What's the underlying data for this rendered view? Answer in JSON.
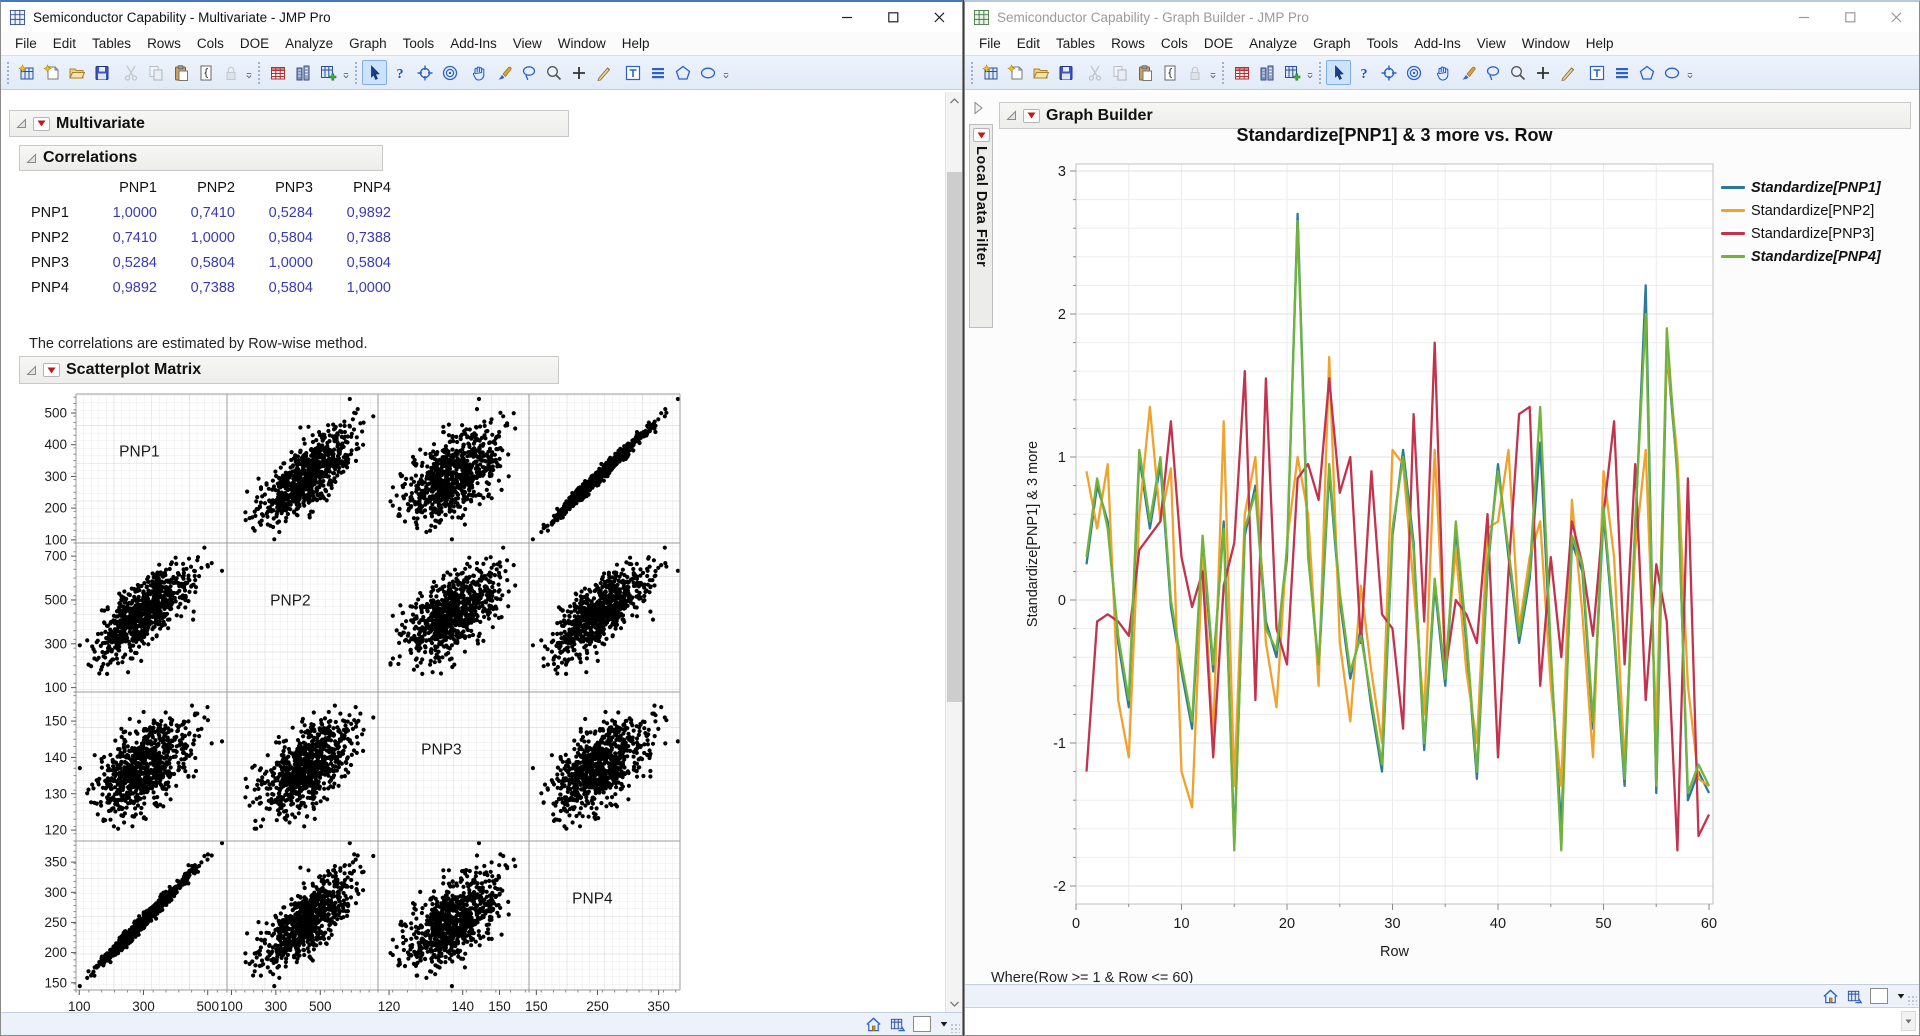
{
  "left_window": {
    "title": "Semiconductor Capability - Multivariate - JMP Pro",
    "menu": [
      "File",
      "Edit",
      "Tables",
      "Rows",
      "Cols",
      "DOE",
      "Analyze",
      "Graph",
      "Tools",
      "Add-Ins",
      "View",
      "Window",
      "Help"
    ],
    "outline_headers": {
      "multivariate": "Multivariate",
      "correlations": "Correlations",
      "scatterplot": "Scatterplot Matrix"
    },
    "correlations": {
      "columns": [
        "PNP1",
        "PNP2",
        "PNP3",
        "PNP4"
      ],
      "rows": [
        {
          "label": "PNP1",
          "values": [
            "1,0000",
            "0,7410",
            "0,5284",
            "0,9892"
          ]
        },
        {
          "label": "PNP2",
          "values": [
            "0,7410",
            "1,0000",
            "0,5804",
            "0,7388"
          ]
        },
        {
          "label": "PNP3",
          "values": [
            "0,5284",
            "0,5804",
            "1,0000",
            "0,5804"
          ]
        },
        {
          "label": "PNP4",
          "values": [
            "0,9892",
            "0,7388",
            "0,5804",
            "1,0000"
          ]
        }
      ],
      "note": "The correlations are estimated by Row-wise method.",
      "value_color": "#3a3ab0"
    }
  },
  "right_window": {
    "title": "Semiconductor Capability - Graph Builder - JMP Pro",
    "menu": [
      "File",
      "Edit",
      "Tables",
      "Rows",
      "Cols",
      "DOE",
      "Analyze",
      "Graph",
      "Tools",
      "Add-Ins",
      "View",
      "Window",
      "Help"
    ],
    "outline_headers": {
      "graph_builder": "Graph Builder"
    },
    "local_data_filter_label": "Local Data Filter",
    "where_text": "Where(Row >= 1 & Row <= 60)",
    "legend": [
      {
        "label": "Standardize[PNP1]",
        "color": "#2d7a96",
        "emphasized": true
      },
      {
        "label": "Standardize[PNP2]",
        "color": "#f0a22e",
        "emphasized": false
      },
      {
        "label": "Standardize[PNP3]",
        "color": "#c2334d",
        "emphasized": false
      },
      {
        "label": "Standardize[PNP4]",
        "color": "#70b33d",
        "emphasized": true
      }
    ]
  },
  "toolbar": {
    "groups": [
      [
        "new-data-table",
        "new-journal",
        "open",
        "save"
      ],
      [
        "cut|disabled",
        "copy|disabled",
        "paste",
        "journal",
        "lock|disabled",
        "overflow"
      ],
      [
        "data-table",
        "columns",
        "new-column",
        "overflow"
      ],
      [
        "arrow|selected",
        "help",
        "crosshair",
        "bullseye"
      ],
      [
        "hand",
        "brush",
        "lasso",
        "magnifier",
        "plus",
        "pencil"
      ],
      [
        "annotate",
        "lines",
        "polygon",
        "oval",
        "overflow"
      ]
    ],
    "status_icons": [
      "home",
      "preview-table",
      "blank-thumb",
      "caret-down"
    ]
  },
  "chart_data": [
    {
      "type": "line",
      "title": "Standardize[PNP1] & 3 more vs. Row",
      "xlabel": "Row",
      "ylabel": "Standardize[PNP1] & 3 more",
      "xlim": [
        0,
        60
      ],
      "ylim": [
        -2.15,
        3.05
      ],
      "x_ticks": [
        0,
        10,
        20,
        30,
        40,
        50,
        60
      ],
      "y_ticks": [
        3,
        2,
        1,
        0,
        -1,
        -2
      ],
      "grid": true,
      "legend_position": "right",
      "x_first": 1,
      "x_last": 60,
      "series": [
        {
          "name": "Standardize[PNP1]",
          "color": "#2d7a96",
          "emphasized": true,
          "values": [
            0.25,
            0.8,
            0.55,
            -0.3,
            -0.75,
            1.0,
            0.5,
            0.95,
            -0.05,
            -0.5,
            -0.9,
            0.4,
            -0.5,
            0.55,
            -1.7,
            0.45,
            0.8,
            -0.15,
            -0.4,
            0.3,
            2.7,
            0.35,
            -0.5,
            0.9,
            0.0,
            -0.55,
            -0.2,
            -0.75,
            -1.2,
            0.45,
            1.05,
            0.4,
            -1.05,
            0.1,
            -0.6,
            0.5,
            -0.3,
            -1.25,
            0.2,
            0.95,
            0.3,
            -0.3,
            0.15,
            1.1,
            -0.4,
            -1.6,
            0.4,
            0.2,
            -0.9,
            0.6,
            -0.25,
            -1.3,
            0.5,
            2.2,
            -1.35,
            1.75,
            0.9,
            -1.4,
            -1.2,
            -1.35
          ]
        },
        {
          "name": "Standardize[PNP2]",
          "color": "#f0a22e",
          "emphasized": false,
          "values": [
            0.9,
            0.5,
            0.95,
            -0.7,
            -1.1,
            0.6,
            1.35,
            0.55,
            0.92,
            -1.2,
            -1.45,
            0.3,
            -0.95,
            1.25,
            -1.3,
            0.6,
            1.0,
            -0.3,
            -0.75,
            0.4,
            1.0,
            0.6,
            -0.6,
            1.7,
            -0.3,
            -0.85,
            0.1,
            -0.5,
            -1.0,
            1.05,
            0.95,
            0.1,
            -0.8,
            1.05,
            -0.45,
            0.35,
            -0.5,
            -1.0,
            0.5,
            0.55,
            1.05,
            -0.2,
            0.3,
            0.55,
            -0.6,
            -1.3,
            0.7,
            -0.1,
            -1.1,
            0.9,
            0.3,
            -1.15,
            0.35,
            1.05,
            -0.9,
            1.75,
            1.0,
            -0.6,
            -1.25,
            -1.3
          ]
        },
        {
          "name": "Standardize[PNP3]",
          "color": "#c2334d",
          "emphasized": false,
          "values": [
            -1.2,
            -0.15,
            -0.1,
            -0.15,
            -0.25,
            0.35,
            0.45,
            0.55,
            1.25,
            0.3,
            -0.05,
            0.2,
            -1.1,
            0.1,
            0.4,
            1.6,
            -0.7,
            1.55,
            -0.2,
            -0.45,
            0.85,
            0.95,
            0.7,
            1.55,
            0.75,
            1.0,
            -0.3,
            0.9,
            -0.1,
            -0.2,
            -0.9,
            1.3,
            -0.15,
            1.8,
            -0.5,
            0.0,
            -0.1,
            -0.3,
            0.6,
            -1.1,
            0.2,
            1.3,
            1.35,
            -0.6,
            0.3,
            -0.4,
            0.55,
            0.25,
            -0.25,
            0.6,
            1.25,
            -0.45,
            0.95,
            -0.7,
            0.25,
            -0.15,
            -1.75,
            0.85,
            -1.65,
            -1.5
          ]
        },
        {
          "name": "Standardize[PNP4]",
          "color": "#70b33d",
          "emphasized": true,
          "values": [
            0.3,
            0.85,
            0.5,
            -0.25,
            -0.7,
            1.05,
            0.55,
            1.0,
            0.0,
            -0.45,
            -0.85,
            0.45,
            -0.45,
            0.5,
            -1.75,
            0.5,
            0.75,
            -0.2,
            -0.35,
            0.35,
            2.65,
            0.3,
            -0.45,
            0.95,
            0.05,
            -0.5,
            -0.25,
            -0.7,
            -1.15,
            0.5,
            1.0,
            0.35,
            -1.0,
            0.15,
            -0.55,
            0.55,
            -0.25,
            -1.2,
            0.25,
            0.9,
            0.35,
            -0.25,
            0.2,
            1.35,
            -0.35,
            -1.75,
            0.45,
            0.25,
            -0.85,
            0.65,
            -0.2,
            -1.25,
            0.55,
            2.0,
            -1.3,
            1.9,
            0.85,
            -1.35,
            -1.15,
            -1.3
          ]
        }
      ]
    },
    {
      "type": "scatter",
      "subtype": "scatterplot-matrix",
      "title": "Scatterplot Matrix",
      "variables": [
        "PNP1",
        "PNP2",
        "PNP3",
        "PNP4"
      ],
      "point_color": "#000000",
      "n_points": 800,
      "axes": {
        "PNP1": {
          "min": 90,
          "max": 560,
          "y_ticks": [
            100,
            200,
            300,
            400,
            500
          ],
          "x_labels": [
            100,
            300,
            500
          ],
          "mean": 300,
          "sd": 72
        },
        "PNP2": {
          "min": 80,
          "max": 760,
          "y_ticks": [
            100,
            300,
            500,
            700
          ],
          "x_labels": [
            100,
            300,
            500
          ],
          "mean": 440,
          "sd": 100
        },
        "PNP3": {
          "min": 117,
          "max": 158,
          "y_ticks": [
            120,
            130,
            140,
            150
          ],
          "x_labels": [
            120,
            140,
            150
          ],
          "mean": 137,
          "sd": 6.3
        },
        "PNP4": {
          "min": 138,
          "max": 385,
          "y_ticks": [
            150,
            200,
            250,
            300,
            350
          ],
          "x_labels": [
            150,
            250,
            350
          ],
          "mean": 252,
          "sd": 39
        }
      },
      "correlation": [
        [
          1.0,
          0.741,
          0.5284,
          0.9892
        ],
        [
          0.741,
          1.0,
          0.5804,
          0.7388
        ],
        [
          0.5284,
          0.5804,
          1.0,
          0.5804
        ],
        [
          0.9892,
          0.7388,
          0.5804,
          1.0
        ]
      ]
    }
  ]
}
